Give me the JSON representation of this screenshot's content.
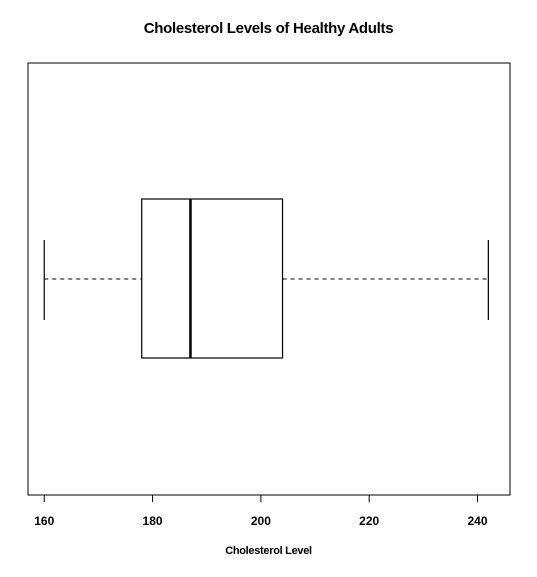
{
  "chart_data": {
    "type": "boxplot",
    "orientation": "horizontal",
    "title": "Cholesterol Levels of Healthy Adults",
    "xlabel": "Cholesterol Level",
    "ylabel": "",
    "xlim": [
      157,
      246
    ],
    "ticks": [
      160,
      180,
      200,
      220,
      240
    ],
    "tick_labels": [
      "160",
      "180",
      "200",
      "220",
      "240"
    ],
    "box": {
      "min": 160,
      "q1": 178,
      "median": 187,
      "q3": 204,
      "max": 242
    },
    "grid": false,
    "whisker_style": "dashed"
  }
}
